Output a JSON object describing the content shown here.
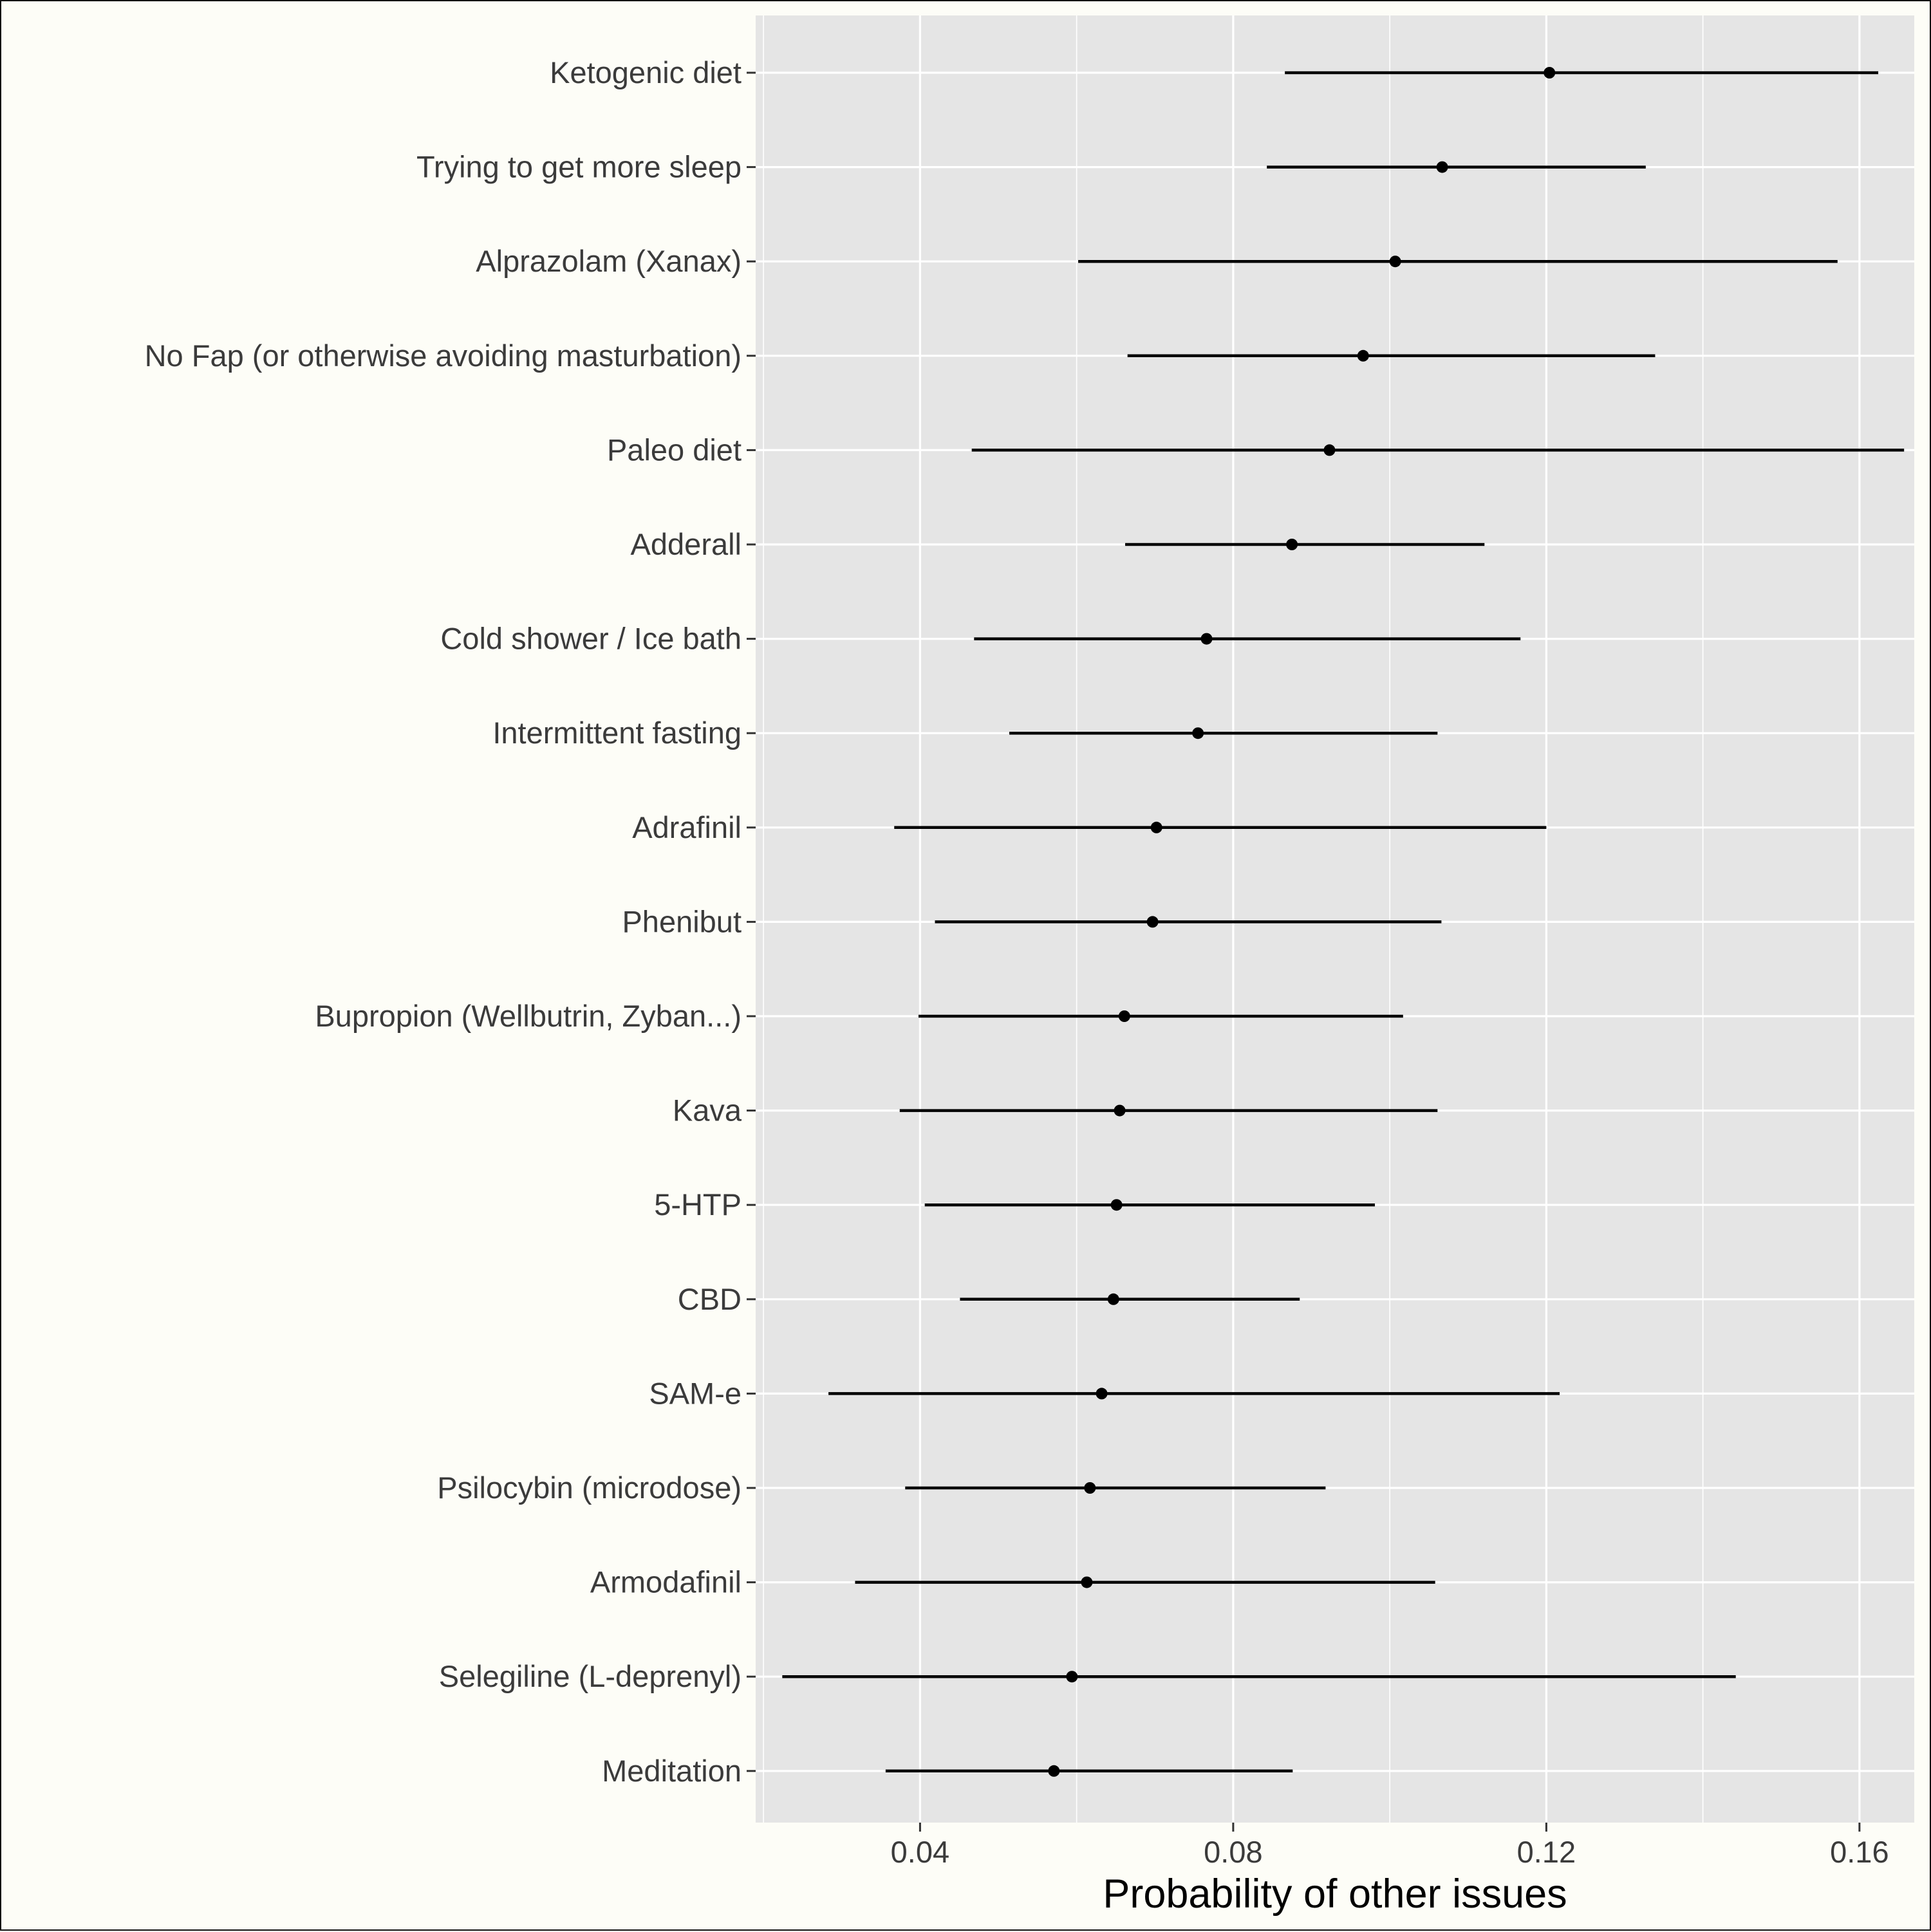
{
  "chart_data": {
    "type": "scatter",
    "orientation": "horizontal-intervals",
    "title": "",
    "xlabel": "Probability of other issues",
    "ylabel": "",
    "xlim": [
      0.019,
      0.167
    ],
    "xticks": [
      0.04,
      0.08,
      0.12,
      0.16
    ],
    "xtick_labels": [
      "0.04",
      "0.08",
      "0.12",
      "0.16"
    ],
    "grid": true,
    "legend": "none",
    "colors": {
      "panel": "#e5e5e5",
      "grid": "#ffffff",
      "marks": "#000000",
      "text": "#3b3b3b",
      "background": "#fdfdf7"
    },
    "categories": [
      "Ketogenic diet",
      "Trying to get more sleep",
      "Alprazolam (Xanax)",
      "No Fap (or otherwise avoiding masturbation)",
      "Paleo diet",
      "Adderall",
      "Cold shower / Ice bath",
      "Intermittent fasting",
      "Adrafinil",
      "Phenibut",
      "Bupropion (Wellbutrin, Zyban...)",
      "Kava",
      "5-HTP",
      "CBD",
      "SAM-e",
      "Psilocybin (microdose)",
      "Armodafinil",
      "Selegiline (L-deprenyl)",
      "Meditation"
    ],
    "estimate": [
      0.1204,
      0.1067,
      0.1007,
      0.0966,
      0.0923,
      0.0875,
      0.0766,
      0.0755,
      0.0702,
      0.0697,
      0.0661,
      0.0655,
      0.0651,
      0.0647,
      0.0632,
      0.0617,
      0.0613,
      0.0594,
      0.0571
    ],
    "lower": [
      0.0866,
      0.0843,
      0.0602,
      0.0665,
      0.0466,
      0.0662,
      0.0469,
      0.0514,
      0.0367,
      0.0419,
      0.0398,
      0.0374,
      0.0406,
      0.0451,
      0.0283,
      0.0381,
      0.0317,
      0.0224,
      0.0356
    ],
    "upper": [
      0.1624,
      0.1327,
      0.1572,
      0.1339,
      0.1657,
      0.1121,
      0.1167,
      0.1061,
      0.12,
      0.1066,
      0.1017,
      0.1061,
      0.0981,
      0.0885,
      0.1217,
      0.0918,
      0.1058,
      0.1442,
      0.0876
    ]
  }
}
